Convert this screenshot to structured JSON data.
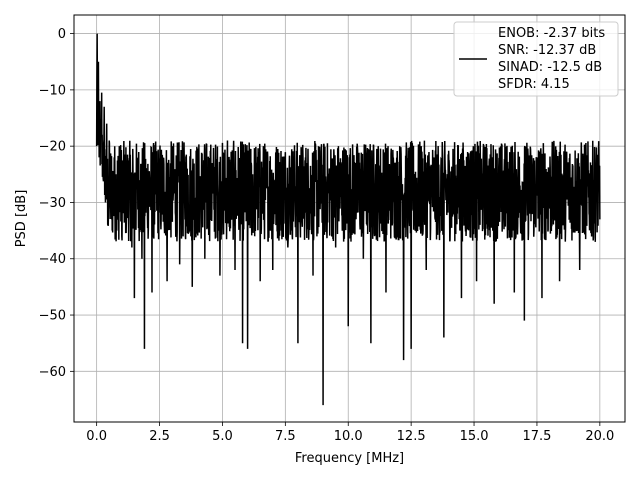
{
  "chart_data": {
    "type": "line",
    "xlabel": "Frequency [MHz]",
    "ylabel": "PSD [dB]",
    "xlim": [
      -0.9,
      21.0
    ],
    "ylim": [
      -69.0,
      3.3
    ],
    "xticks": [
      0.0,
      2.5,
      5.0,
      7.5,
      10.0,
      12.5,
      15.0,
      17.5,
      20.0
    ],
    "xtick_labels": [
      "0.0",
      "2.5",
      "5.0",
      "7.5",
      "10.0",
      "12.5",
      "15.0",
      "17.5",
      "20.0"
    ],
    "yticks": [
      0,
      -10,
      -20,
      -30,
      -40,
      -50,
      -60
    ],
    "ytick_labels": [
      "0",
      "−10",
      "−20",
      "−30",
      "−40",
      "−50",
      "−60"
    ],
    "grid": true,
    "legend_position": "top-right",
    "series": [
      {
        "name": "ENOB: -2.37 bits\nSNR: -12.37 dB\nSINAD: -12.5 dB\nSFDR: 4.15",
        "legend_lines": [
          "ENOB: -2.37 bits",
          "SNR: -12.37 dB",
          "SINAD: -12.5 dB",
          "SFDR: 4.15"
        ],
        "color": "#000000",
        "points": [
          [
            0.0,
            -20.0
          ],
          [
            0.01,
            -8.0
          ],
          [
            0.02,
            0.0
          ],
          [
            0.03,
            -10.0
          ],
          [
            0.05,
            -15.0
          ],
          [
            0.07,
            -5.0
          ],
          [
            0.1,
            -22.0
          ],
          [
            0.13,
            -12.0
          ],
          [
            0.16,
            -18.0
          ],
          [
            0.2,
            -10.5
          ],
          [
            0.25,
            -24.0
          ],
          [
            0.3,
            -13.0
          ],
          [
            0.35,
            -30.0
          ],
          [
            0.4,
            -16.0
          ],
          [
            0.45,
            -34.0
          ],
          [
            0.5,
            -19.0
          ],
          [
            0.6,
            -33.0
          ],
          [
            0.7,
            -22.0
          ],
          [
            0.8,
            -35.0
          ],
          [
            0.9,
            -20.0
          ],
          [
            1.0,
            -36.0
          ],
          [
            1.2,
            -24.0
          ],
          [
            1.4,
            -38.0
          ],
          [
            1.5,
            -47.0
          ],
          [
            1.6,
            -22.0
          ],
          [
            1.8,
            -40.0
          ],
          [
            1.9,
            -56.0
          ],
          [
            2.0,
            -25.0
          ],
          [
            2.2,
            -46.0
          ],
          [
            2.5,
            -23.0
          ],
          [
            2.8,
            -44.0
          ],
          [
            3.0,
            -20.0
          ],
          [
            3.3,
            -41.0
          ],
          [
            3.6,
            -24.0
          ],
          [
            3.8,
            -45.0
          ],
          [
            4.0,
            -21.0
          ],
          [
            4.3,
            -40.0
          ],
          [
            4.6,
            -23.0
          ],
          [
            4.9,
            -43.0
          ],
          [
            5.2,
            -19.0
          ],
          [
            5.5,
            -42.0
          ],
          [
            5.8,
            -55.0
          ],
          [
            6.0,
            -56.0
          ],
          [
            6.2,
            -25.0
          ],
          [
            6.5,
            -44.0
          ],
          [
            6.8,
            -22.0
          ],
          [
            7.0,
            -42.0
          ],
          [
            7.3,
            -23.0
          ],
          [
            7.6,
            -38.0
          ],
          [
            8.0,
            -55.0
          ],
          [
            8.3,
            -22.0
          ],
          [
            8.6,
            -43.0
          ],
          [
            8.9,
            -24.0
          ],
          [
            9.0,
            -66.0
          ],
          [
            9.2,
            -26.0
          ],
          [
            9.5,
            -38.0
          ],
          [
            9.8,
            -22.0
          ],
          [
            10.0,
            -52.0
          ],
          [
            10.3,
            -23.0
          ],
          [
            10.6,
            -40.0
          ],
          [
            10.9,
            -55.0
          ],
          [
            11.2,
            -24.0
          ],
          [
            11.5,
            -46.0
          ],
          [
            11.8,
            -23.0
          ],
          [
            12.2,
            -58.0
          ],
          [
            12.5,
            -56.0
          ],
          [
            12.8,
            -24.0
          ],
          [
            13.1,
            -42.0
          ],
          [
            13.4,
            -22.0
          ],
          [
            13.8,
            -54.0
          ],
          [
            14.1,
            -25.0
          ],
          [
            14.5,
            -47.0
          ],
          [
            14.8,
            -23.0
          ],
          [
            15.1,
            -44.0
          ],
          [
            15.5,
            -26.0
          ],
          [
            15.8,
            -48.0
          ],
          [
            16.2,
            -24.0
          ],
          [
            16.6,
            -46.0
          ],
          [
            17.0,
            -51.0
          ],
          [
            17.3,
            -24.0
          ],
          [
            17.7,
            -47.0
          ],
          [
            18.0,
            -25.0
          ],
          [
            18.4,
            -44.0
          ],
          [
            18.8,
            -26.0
          ],
          [
            19.2,
            -42.0
          ],
          [
            19.6,
            -25.0
          ],
          [
            20.0,
            -33.0
          ]
        ]
      }
    ]
  }
}
